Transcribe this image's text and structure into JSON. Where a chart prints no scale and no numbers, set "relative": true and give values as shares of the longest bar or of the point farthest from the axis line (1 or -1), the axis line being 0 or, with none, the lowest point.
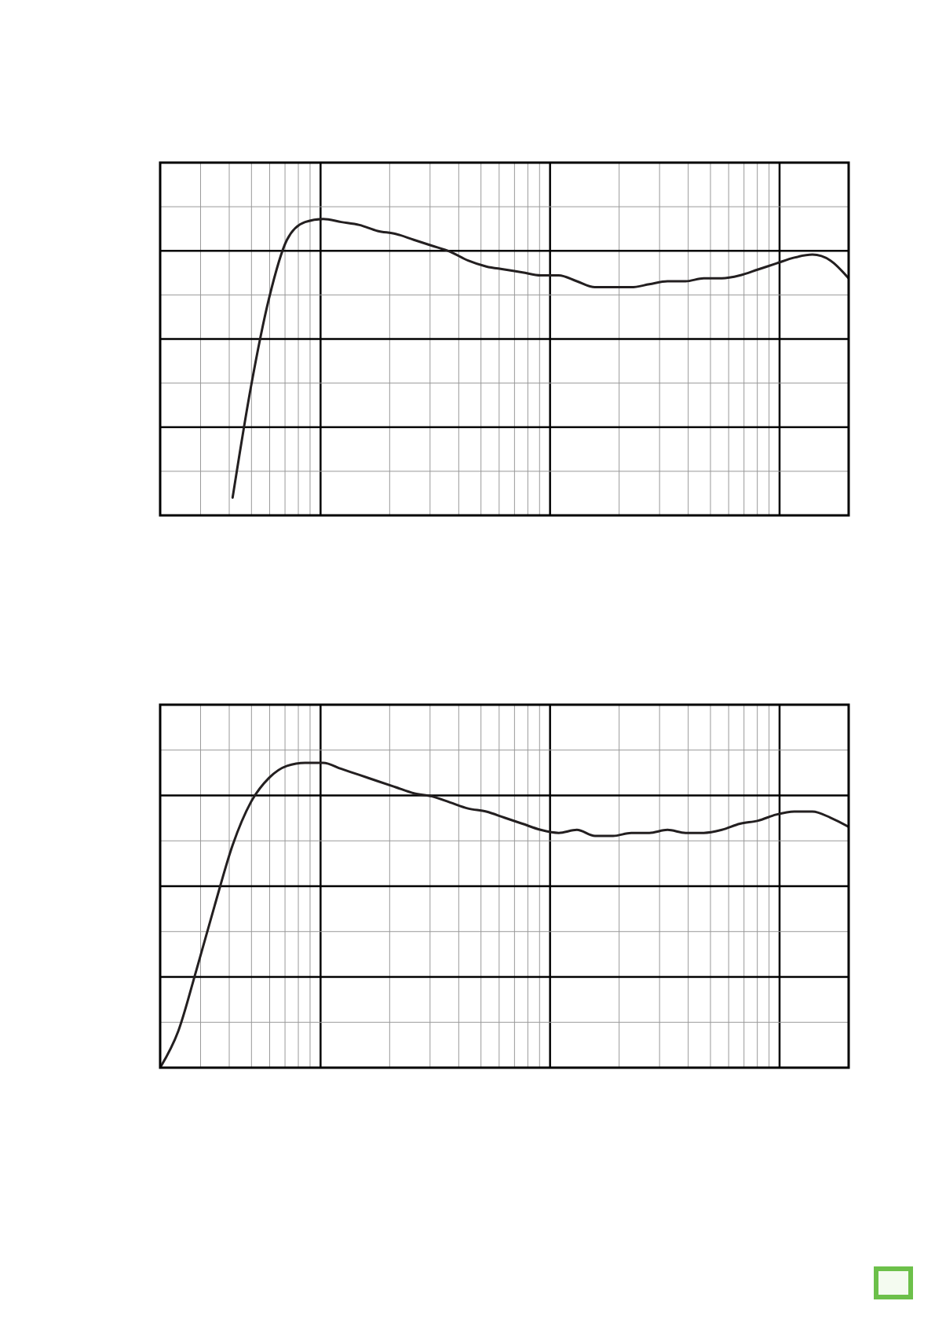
{
  "chart_data": [
    {
      "type": "line",
      "relative": true,
      "grid": true,
      "categories": [
        null,
        null,
        null,
        null,
        null,
        null,
        null,
        null,
        null,
        null,
        null,
        null,
        null,
        null,
        null,
        null,
        null,
        null,
        null,
        null,
        null,
        null,
        null,
        null,
        null,
        null,
        null,
        null,
        null,
        null,
        null,
        null,
        null,
        null,
        null,
        null,
        null,
        null,
        null
      ],
      "series": [
        {
          "color": "#231f20",
          "values": [
            null,
            null,
            null,
            null,
            0.06,
            0.43,
            0.73,
            0.93,
            0.99,
            1,
            0.99,
            0.98,
            0.96,
            0.95,
            0.93,
            0.91,
            0.89,
            0.86,
            0.84,
            0.83,
            0.82,
            0.81,
            0.81,
            0.79,
            0.77,
            0.77,
            0.77,
            0.78,
            0.79,
            0.79,
            0.8,
            0.8,
            0.81,
            0.83,
            0.85,
            0.87,
            0.88,
            0.86,
            0.8
          ]
        }
      ]
    },
    {
      "type": "line",
      "relative": true,
      "grid": true,
      "categories": [
        null,
        null,
        null,
        null,
        null,
        null,
        null,
        null,
        null,
        null,
        null,
        null,
        null,
        null,
        null,
        null,
        null,
        null,
        null,
        null,
        null,
        null,
        null,
        null,
        null,
        null,
        null,
        null,
        null,
        null,
        null,
        null,
        null,
        null,
        null,
        null,
        null,
        null,
        null
      ],
      "series": [
        {
          "color": "#231f20",
          "values": [
            0,
            0.12,
            0.32,
            0.53,
            0.73,
            0.87,
            0.95,
            0.99,
            1,
            1,
            0.98,
            0.96,
            0.94,
            0.92,
            0.9,
            0.89,
            0.87,
            0.85,
            0.84,
            0.82,
            0.8,
            0.78,
            0.77,
            0.78,
            0.76,
            0.76,
            0.77,
            0.77,
            0.78,
            0.77,
            0.77,
            0.78,
            0.8,
            0.81,
            0.83,
            0.84,
            0.84,
            0.82,
            0.79
          ]
        }
      ]
    }
  ]
}
